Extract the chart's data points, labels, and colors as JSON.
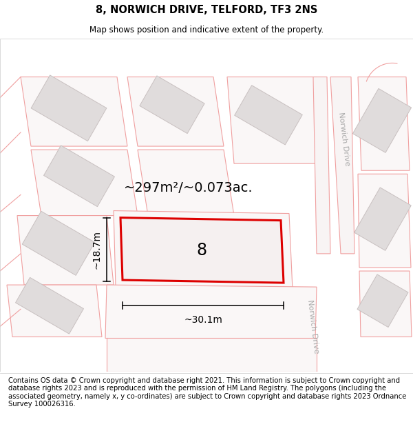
{
  "title_line1": "8, NORWICH DRIVE, TELFORD, TF3 2NS",
  "title_line2": "Map shows position and indicative extent of the property.",
  "footer_text": "Contains OS data © Crown copyright and database right 2021. This information is subject to Crown copyright and database rights 2023 and is reproduced with the permission of HM Land Registry. The polygons (including the associated geometry, namely x, y co-ordinates) are subject to Crown copyright and database rights 2023 Ordnance Survey 100026316.",
  "map_bg": "#ffffff",
  "road_fill": "#f5f0f0",
  "parcel_edge": "#f0a0a0",
  "parcel_fill": "#faf7f7",
  "building_color": "#e0dcdc",
  "building_edge": "#c8c0c0",
  "plot_fill": "#f5f0f0",
  "plot_edge": "#dd0000",
  "area_text": "~297m²/~0.073ac.",
  "width_text": "~30.1m",
  "height_text": "~18.7m",
  "number_text": "8",
  "norwich_drive_label": "Norwich Drive",
  "title_fontsize": 10.5,
  "subtitle_fontsize": 8.5,
  "footer_fontsize": 7.2,
  "area_fontsize": 14,
  "number_fontsize": 17,
  "dim_fontsize": 10
}
